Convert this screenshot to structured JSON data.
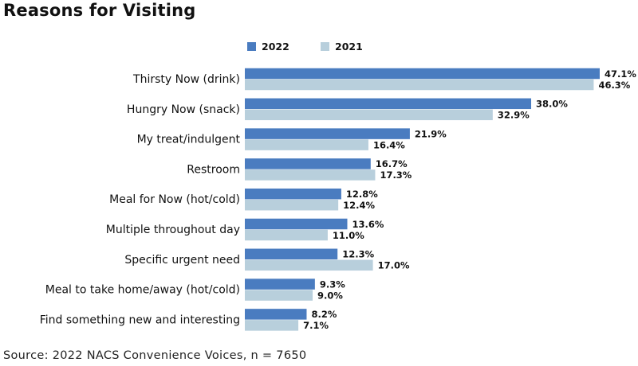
{
  "chart_data": {
    "type": "bar",
    "orientation": "horizontal",
    "title": "Reasons for Visiting",
    "categories": [
      "Thirsty Now (drink)",
      "Hungry Now (snack)",
      "My treat/indulgent",
      "Restroom",
      "Meal for Now (hot/cold)",
      "Multiple throughout day",
      "Specific urgent need",
      "Meal to take home/away (hot/cold)",
      "Find something new and interesting"
    ],
    "series": [
      {
        "name": "2022",
        "color": "#4a7cc0",
        "values": [
          47.1,
          38.0,
          21.9,
          16.7,
          12.8,
          13.6,
          12.3,
          9.3,
          8.2
        ],
        "labels": [
          "47.1%",
          "38.0%",
          "21.9%",
          "16.7%",
          "12.8%",
          "13.6%",
          "12.3%",
          "9.3%",
          "8.2%"
        ]
      },
      {
        "name": "2021",
        "color": "#b8cfdc",
        "values": [
          46.3,
          32.9,
          16.4,
          17.3,
          12.4,
          11.0,
          17.0,
          9.0,
          7.1
        ],
        "labels": [
          "46.3%",
          "32.9%",
          "16.4%",
          "17.3%",
          "12.4%",
          "11.0%",
          "17.0%",
          "9.0%",
          "7.1%"
        ]
      }
    ],
    "xlim": [
      0,
      47.1
    ],
    "legend": "top-left",
    "grid": false
  },
  "source": "Source: 2022 NACS Convenience Voices, n = 7650"
}
